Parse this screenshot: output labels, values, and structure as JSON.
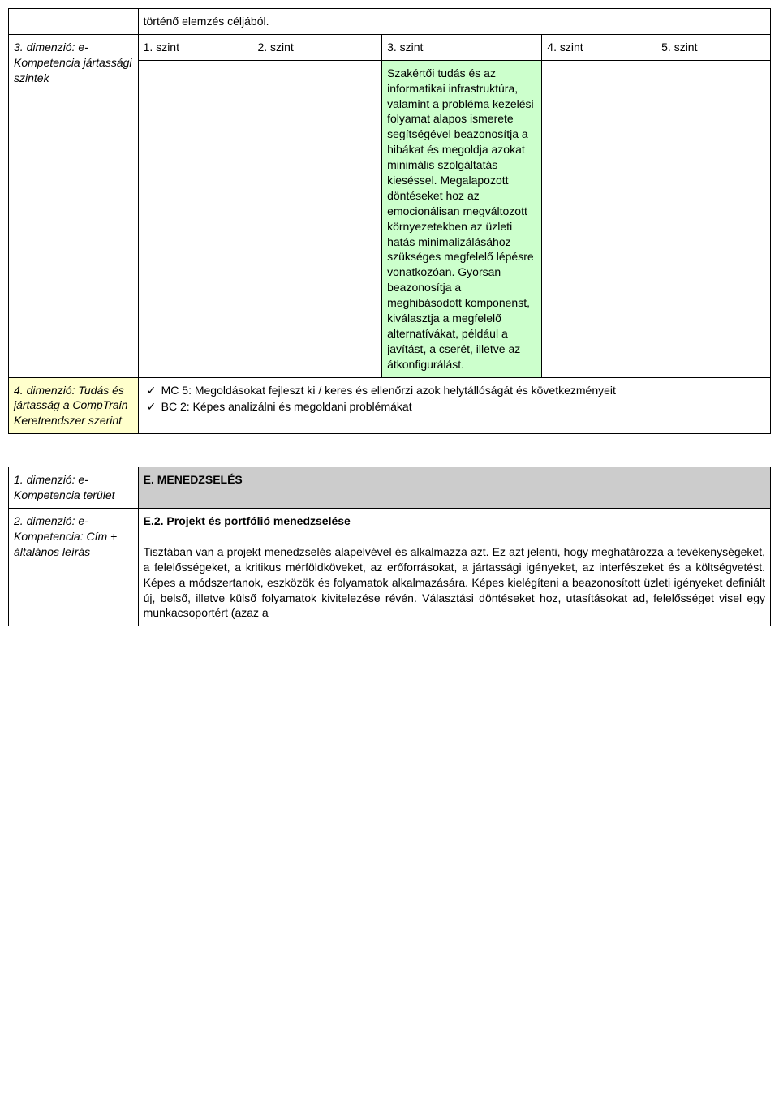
{
  "colors": {
    "yellow_bg": "#ffffcc",
    "green_bg": "#ccffcc",
    "grey_bg": "#cccccc",
    "border": "#000000",
    "text": "#000000",
    "page_bg": "#ffffff"
  },
  "typography": {
    "font_family": "Trebuchet MS",
    "base_fontsize_pt": 10.5,
    "line_height": 1.35
  },
  "table1": {
    "row_top": {
      "label": "",
      "content": "történő elemzés céljából."
    },
    "row_levels": {
      "label": "3. dimenzió: e-Kompetencia jártassági szintek",
      "cells": [
        "1. szint",
        "2. szint",
        "3. szint",
        "4. szint",
        "5. szint"
      ]
    },
    "row_green": {
      "c1": "",
      "c2": "",
      "c3": "Szakértői tudás és az informatikai infrastruktúra, valamint a probléma kezelési folyamat alapos ismerete segítségével beazonosítja a hibákat és megoldja azokat minimális szolgáltatás kieséssel. Megalapozott döntéseket hoz az emocionálisan megváltozott környezetekben az üzleti hatás minimalizálásához szükséges megfelelő lépésre vonatkozóan. Gyorsan beazonosítja a meghibásodott komponenst, kiválasztja a megfelelő alternatívákat, például a javítást, a cserét, illetve az átkonfigurálást.",
      "c4": "",
      "c5": ""
    },
    "row_dim4": {
      "label": "4. dimenzió: Tudás és jártasság a CompTrain Keretrendszer szerint",
      "items": [
        "MC 5: Megoldásokat fejleszt ki / keres és ellenőrzi azok helytállóságát és következményeit",
        "BC 2: Képes analizálni és megoldani problémákat"
      ]
    }
  },
  "table2": {
    "row_dim1": {
      "label": "1. dimenzió: e-Kompetencia terület",
      "heading": "E. MENEDZSELÉS"
    },
    "row_dim2": {
      "label": "2. dimenzió: e-Kompetencia: Cím + általános leírás",
      "title": "E.2. Projekt és portfólió menedzselése",
      "body": "Tisztában van a projekt menedzselés alapelvével és alkalmazza azt. Ez azt jelenti, hogy meghatározza a tevékenységeket, a felelősségeket, a kritikus mérföldköveket, az erőforrásokat, a jártassági igényeket, az interfészeket és a költségvetést. Képes a módszertanok, eszközök és folyamatok alkalmazására. Képes kielégíteni a beazonosított üzleti igényeket definiált új, belső, illetve külső folyamatok kivitelezése révén. Választási döntéseket hoz, utasításokat ad, felelősséget visel egy munkacsoportért (azaz a"
    }
  }
}
